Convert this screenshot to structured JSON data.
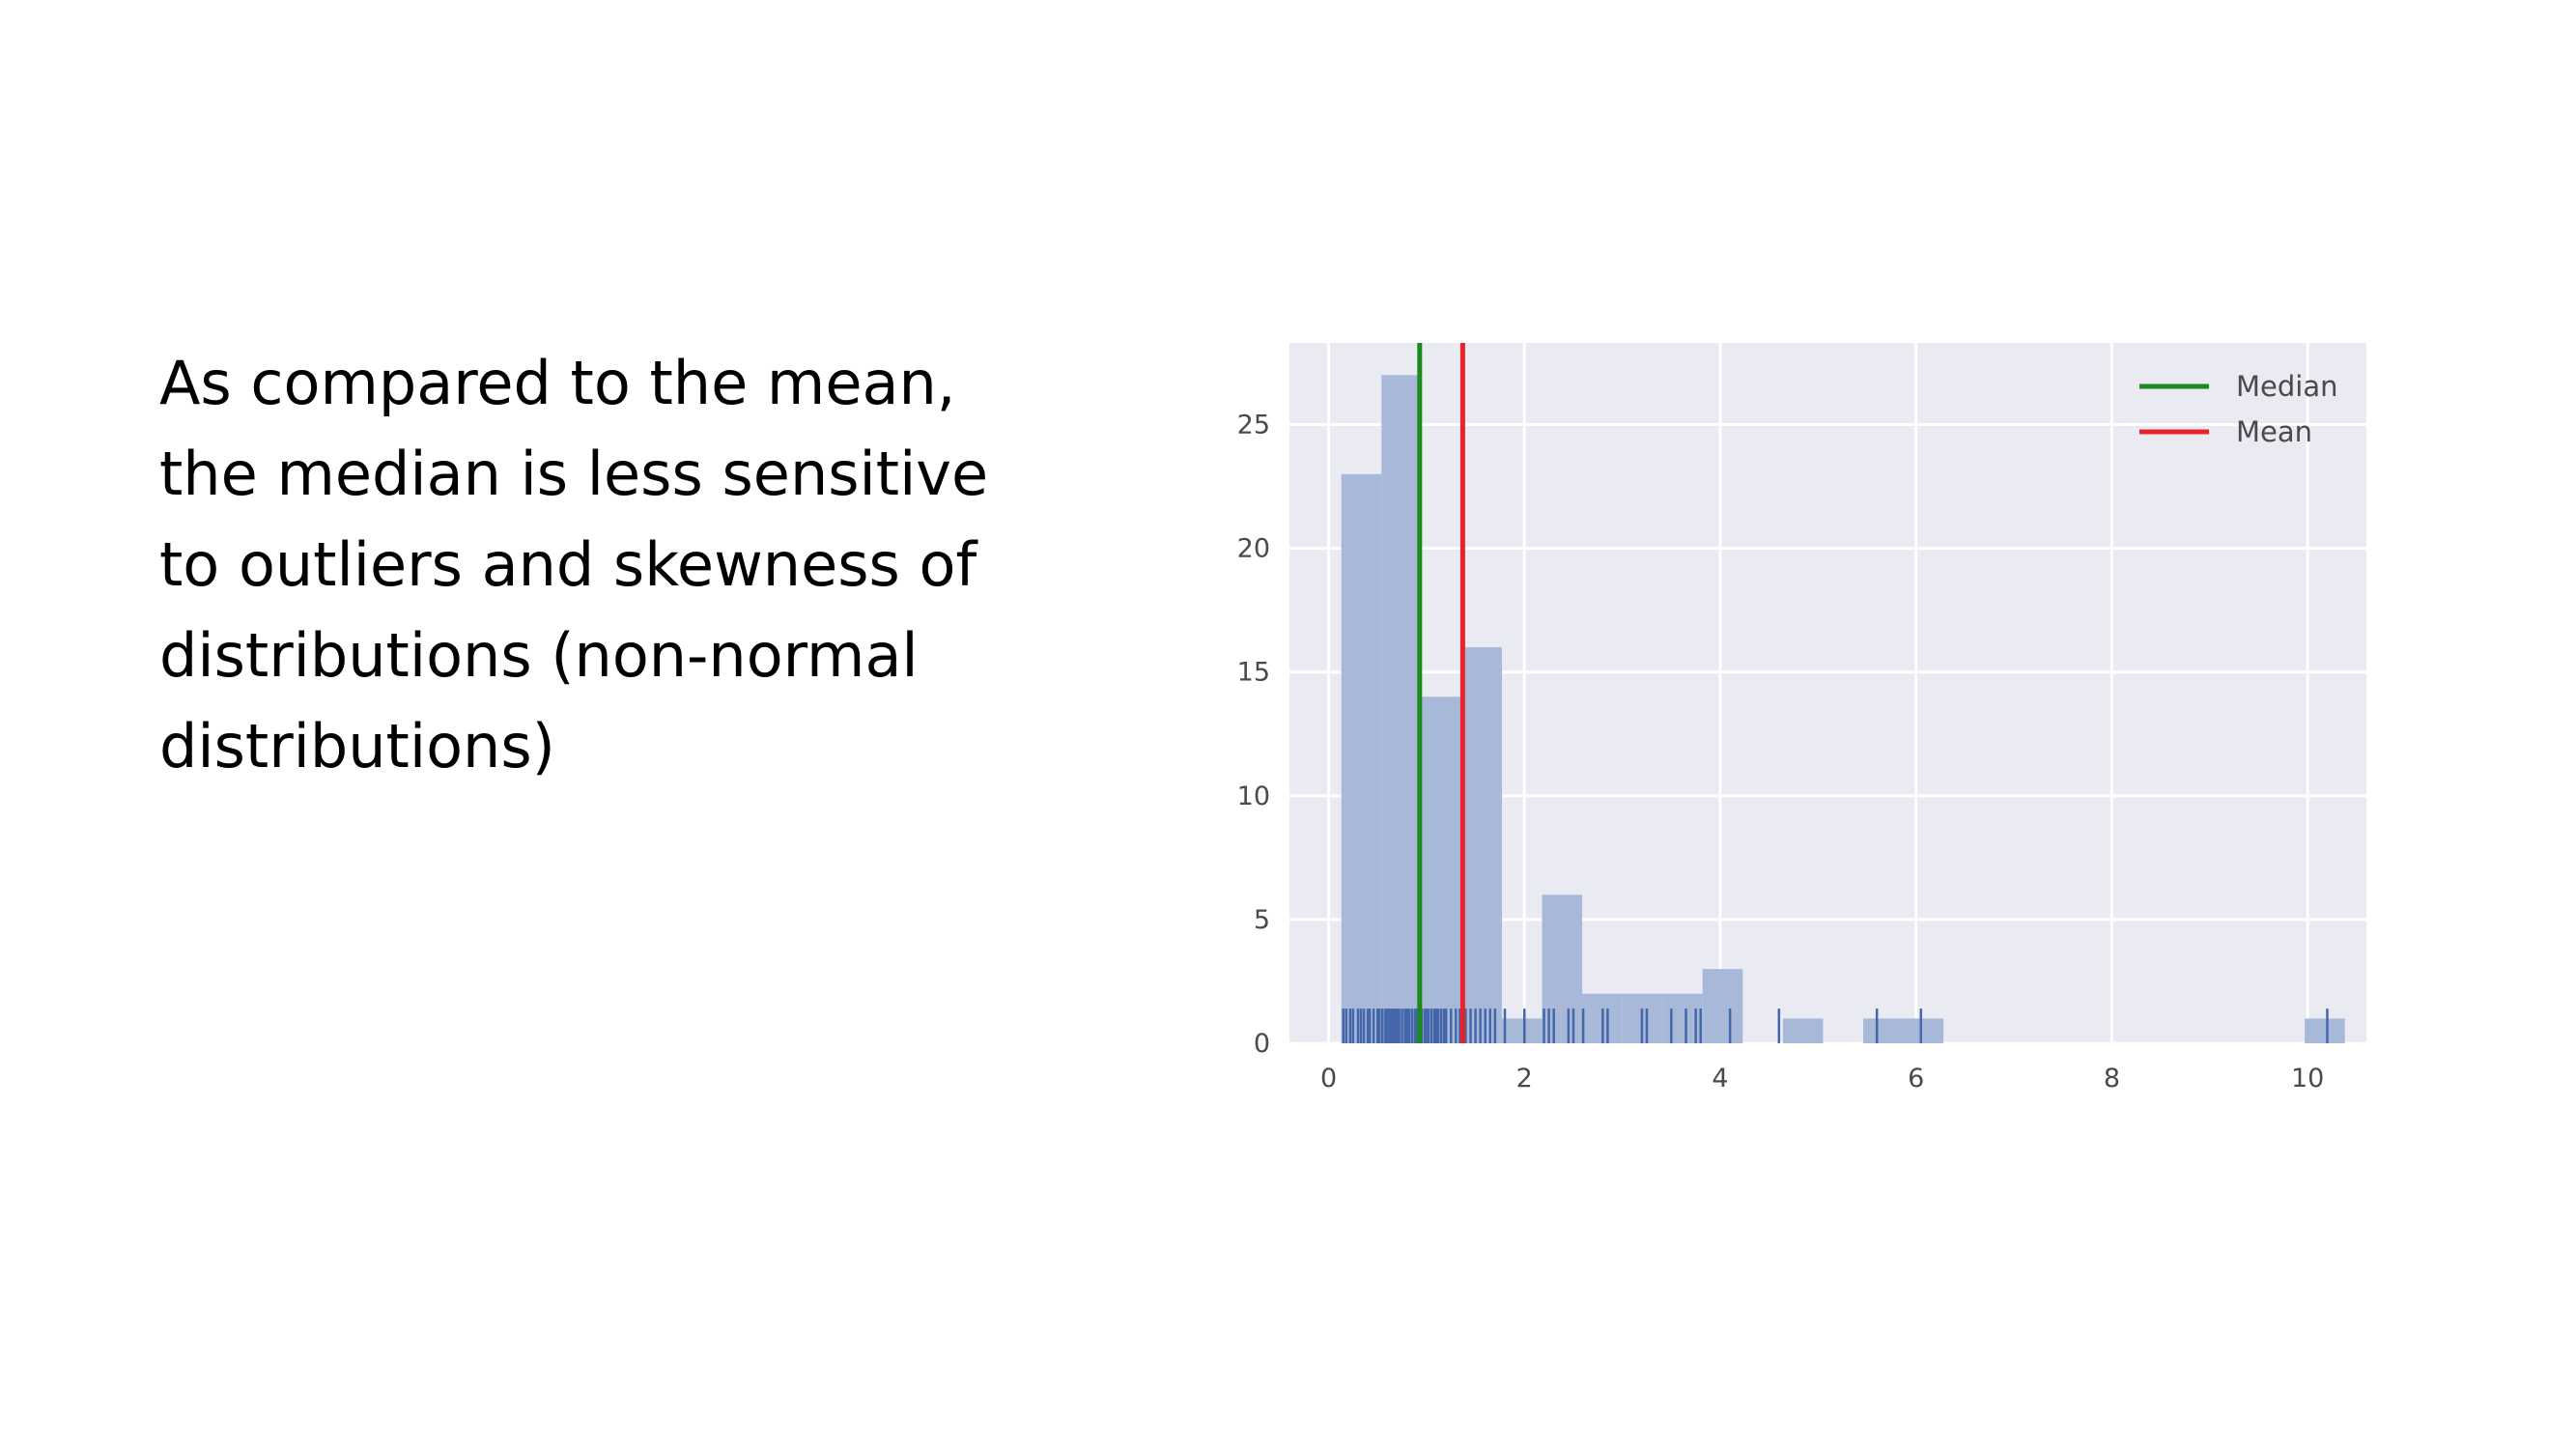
{
  "slide": {
    "lines": [
      "As compared to the mean,",
      "the median is less sensitive",
      "to outliers and skewness of",
      "distributions (non-normal",
      "distributions)"
    ]
  },
  "chart_data": {
    "type": "bar",
    "subtype": "histogram-with-rug",
    "xlim": [
      -0.4,
      10.6
    ],
    "ylim": [
      0,
      28.3
    ],
    "xticks": [
      0,
      2,
      4,
      6,
      8,
      10
    ],
    "yticks": [
      0,
      5,
      10,
      15,
      20,
      25
    ],
    "grid": true,
    "legend_position": "top-right",
    "bins": [
      {
        "x0": 0.13,
        "x1": 0.54,
        "count": 23
      },
      {
        "x0": 0.54,
        "x1": 0.95,
        "count": 27
      },
      {
        "x0": 0.95,
        "x1": 1.36,
        "count": 14
      },
      {
        "x0": 1.36,
        "x1": 1.77,
        "count": 16
      },
      {
        "x0": 1.77,
        "x1": 2.18,
        "count": 1
      },
      {
        "x0": 2.18,
        "x1": 2.59,
        "count": 6
      },
      {
        "x0": 2.59,
        "x1": 3.0,
        "count": 2
      },
      {
        "x0": 3.0,
        "x1": 3.41,
        "count": 2
      },
      {
        "x0": 3.41,
        "x1": 3.82,
        "count": 2
      },
      {
        "x0": 3.82,
        "x1": 4.23,
        "count": 3
      },
      {
        "x0": 4.64,
        "x1": 5.05,
        "count": 1
      },
      {
        "x0": 5.46,
        "x1": 5.87,
        "count": 1
      },
      {
        "x0": 5.87,
        "x1": 6.28,
        "count": 1
      },
      {
        "x0": 9.97,
        "x1": 10.38,
        "count": 1
      }
    ],
    "rug": [
      0.15,
      0.18,
      0.22,
      0.25,
      0.3,
      0.33,
      0.36,
      0.4,
      0.42,
      0.46,
      0.5,
      0.52,
      0.55,
      0.58,
      0.6,
      0.62,
      0.64,
      0.66,
      0.68,
      0.7,
      0.72,
      0.75,
      0.78,
      0.8,
      0.82,
      0.85,
      0.88,
      0.9,
      0.93,
      0.95,
      0.98,
      1.0,
      1.02,
      1.05,
      1.08,
      1.1,
      1.12,
      1.15,
      1.18,
      1.2,
      1.25,
      1.3,
      1.34,
      1.4,
      1.45,
      1.5,
      1.55,
      1.6,
      1.65,
      1.7,
      1.8,
      2.0,
      2.2,
      2.25,
      2.3,
      2.45,
      2.5,
      2.6,
      2.8,
      2.85,
      3.2,
      3.25,
      3.5,
      3.65,
      3.75,
      3.8,
      4.1,
      4.6,
      5.6,
      6.05,
      10.2
    ],
    "series": [
      {
        "name": "Median",
        "value": 0.93,
        "color": "#1a8a1a"
      },
      {
        "name": "Mean",
        "value": 1.37,
        "color": "#e8242a"
      }
    ],
    "colors": {
      "bar": "#a8b8d8",
      "rug": "#4466aa",
      "plot_bg": "#eaeaf2",
      "grid": "#ffffff"
    }
  }
}
